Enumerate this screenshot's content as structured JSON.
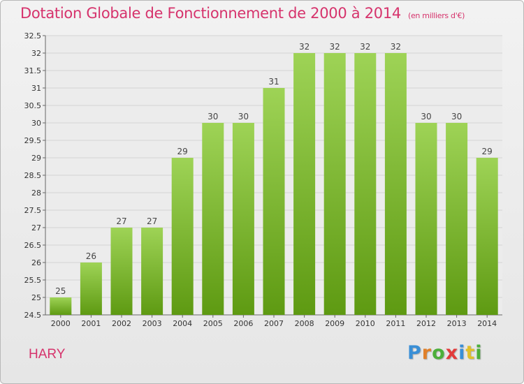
{
  "header": {
    "title": "Dotation Globale de Fonctionnement de 2000 à 2014",
    "unit": "(en milliers d'€)"
  },
  "commune": "HARY",
  "logo": {
    "letters": [
      {
        "char": "P",
        "color": "#3a8fd6"
      },
      {
        "char": "r",
        "color": "#e0802a"
      },
      {
        "char": "o",
        "color": "#4caf3a"
      },
      {
        "char": "x",
        "color": "#e23b3b"
      },
      {
        "char": "i",
        "color": "#3a8fd6"
      },
      {
        "char": "t",
        "color": "#e0c02a"
      },
      {
        "char": "i",
        "color": "#4caf3a"
      }
    ]
  },
  "colors": {
    "bar_top": "#9ed356",
    "bar_bottom": "#5e9a12",
    "grid": "#d4d4d4",
    "accent": "#d6336c"
  },
  "chart_data": {
    "type": "bar",
    "categories": [
      "2000",
      "2001",
      "2002",
      "2003",
      "2004",
      "2005",
      "2006",
      "2007",
      "2008",
      "2009",
      "2010",
      "2011",
      "2012",
      "2013",
      "2014"
    ],
    "values": [
      25,
      26,
      27,
      27,
      29,
      30,
      30,
      31,
      32,
      32,
      32,
      32,
      30,
      30,
      29
    ],
    "ylim": [
      24.5,
      32.5
    ],
    "yticks": [
      "24.5",
      "25",
      "25.5",
      "26",
      "26.5",
      "27",
      "27.5",
      "28",
      "28.5",
      "29",
      "29.5",
      "30",
      "30.5",
      "31",
      "31.5",
      "32",
      "32.5"
    ],
    "grid": true,
    "legend": "none"
  }
}
